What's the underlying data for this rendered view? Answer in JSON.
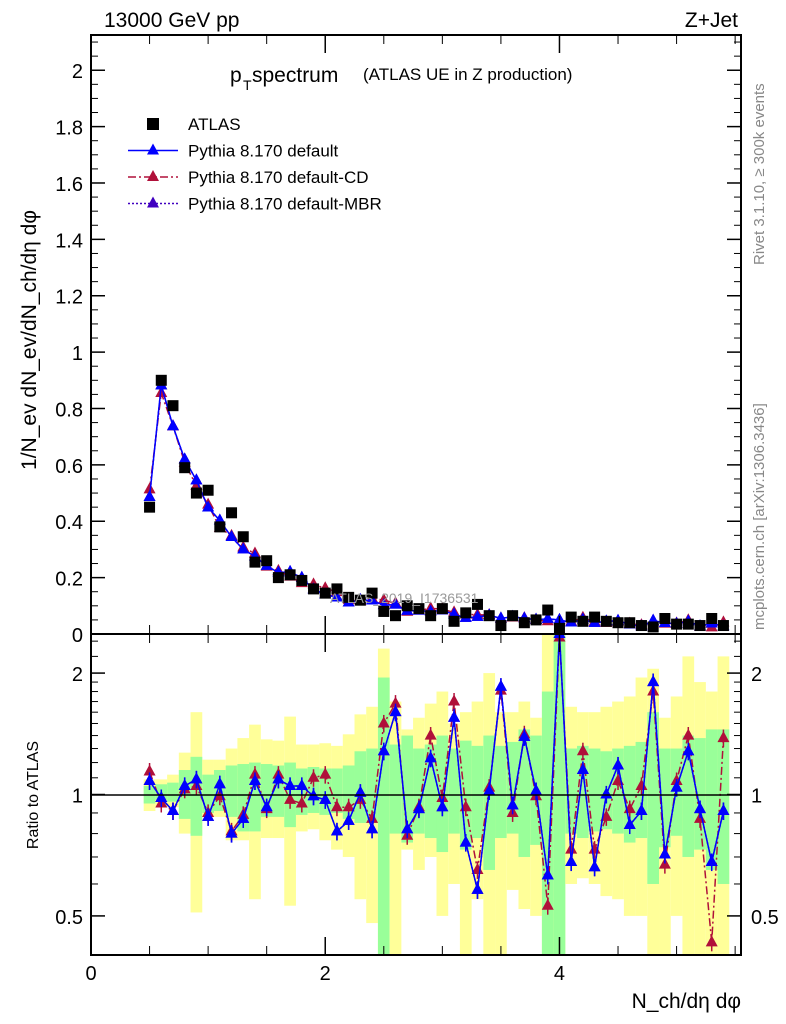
{
  "chart_data": {
    "type": "scatter",
    "header_left": "13000 GeV pp",
    "header_right": "Z+Jet",
    "title_main": "p",
    "title_sub": "T",
    "title_rest": " spectrum",
    "title_paren": "(ATLAS UE in Z production)",
    "ylabel": "1/N_ev dN_ev/dN_ch/dη dφ",
    "xlabel": "N_ch/dη dφ",
    "ratio_ylabel": "Ratio to ATLAS",
    "watermark": "ATLAS_2019_I1736531",
    "side_text_top": "Rivet 3.1.10, ≥ 300k events",
    "side_text_bottom": "mcplots.cern.ch [arXiv:1306.3436]",
    "xlim": [
      0,
      5.55
    ],
    "ylim": [
      0,
      2.125
    ],
    "ratio_ylim": [
      0.4,
      2.5
    ],
    "ratio_scale": "log",
    "x_ticks": [
      "0",
      "2",
      "4"
    ],
    "y_ticks": [
      "0",
      "0.2",
      "0.4",
      "0.6",
      "0.8",
      "1",
      "1.2",
      "1.4",
      "1.6",
      "1.8",
      "2"
    ],
    "ratio_ticks": [
      "0.5",
      "1",
      "2"
    ],
    "legend": [
      {
        "label": "ATLAS",
        "color": "#000000",
        "marker": "square"
      },
      {
        "label": "Pythia 8.170 default",
        "color": "#0000ff",
        "marker": "triangle",
        "line": "solid"
      },
      {
        "label": "Pythia 8.170 default-CD",
        "color": "#b0103a",
        "marker": "triangle",
        "line": "dashdot"
      },
      {
        "label": "Pythia 8.170 default-MBR",
        "color": "#4000c0",
        "marker": "triangle",
        "line": "dotted"
      }
    ],
    "x": [
      0.5,
      0.6,
      0.7,
      0.8,
      0.9,
      1.0,
      1.1,
      1.2,
      1.3,
      1.4,
      1.5,
      1.6,
      1.7,
      1.8,
      1.9,
      2.0,
      2.1,
      2.2,
      2.3,
      2.4,
      2.5,
      2.6,
      2.7,
      2.8,
      2.9,
      3.0,
      3.1,
      3.2,
      3.3,
      3.4,
      3.5,
      3.6,
      3.7,
      3.8,
      3.9,
      4.0,
      4.1,
      4.2,
      4.3,
      4.4,
      4.5,
      4.6,
      4.7,
      4.8,
      4.9,
      5.0,
      5.1,
      5.2,
      5.3,
      5.4
    ],
    "atlas": [
      0.45,
      0.9,
      0.81,
      0.59,
      0.5,
      0.51,
      0.38,
      0.43,
      0.345,
      0.255,
      0.26,
      0.2,
      0.21,
      0.19,
      0.16,
      0.145,
      0.16,
      0.13,
      0.12,
      0.145,
      0.08,
      0.065,
      0.1,
      0.09,
      0.065,
      0.09,
      0.045,
      0.075,
      0.105,
      0.065,
      0.03,
      0.065,
      0.04,
      0.05,
      0.085,
      0.02,
      0.06,
      0.045,
      0.06,
      0.045,
      0.04,
      0.04,
      0.03,
      0.025,
      0.055,
      0.035,
      0.035,
      0.03,
      0.055,
      0.03
    ],
    "ratio_default": [
      1.08,
      0.98,
      0.91,
      1.05,
      1.09,
      0.88,
      1.06,
      0.8,
      0.87,
      1.08,
      0.93,
      1.09,
      1.05,
      1.05,
      0.99,
      0.97,
      0.81,
      0.86,
      1.01,
      0.82,
      1.28,
      1.6,
      0.82,
      0.92,
      1.23,
      0.93,
      1.55,
      0.76,
      0.58,
      1.02,
      1.85,
      0.94,
      1.39,
      1.02,
      0.63,
      2.5,
      0.68,
      1.15,
      0.66,
      1.0,
      1.18,
      0.84,
      0.91,
      1.9,
      0.71,
      1.04,
      1.28,
      0.92,
      0.68,
      0.91
    ],
    "ratio_cd": [
      1.14,
      0.95,
      0.91,
      1.03,
      1.05,
      0.9,
      0.99,
      0.81,
      0.89,
      1.12,
      0.92,
      1.12,
      0.97,
      0.95,
      1.1,
      1.12,
      0.93,
      0.93,
      0.97,
      0.87,
      1.5,
      1.68,
      0.79,
      0.93,
      1.4,
      0.98,
      1.7,
      0.93,
      0.65,
      1.04,
      1.81,
      0.9,
      1.41,
      0.99,
      0.53,
      2.45,
      0.73,
      1.28,
      0.73,
      0.88,
      1.08,
      0.92,
      1.05,
      1.8,
      0.67,
      1.08,
      1.4,
      0.87,
      0.43,
      1.38
    ],
    "ratio_mbr": [
      1.08,
      0.98,
      0.91,
      1.05,
      1.09,
      0.88,
      1.06,
      0.8,
      0.87,
      1.08,
      0.93,
      1.09,
      1.05,
      1.05,
      0.99,
      0.97,
      0.81,
      0.86,
      1.01,
      0.82,
      1.28,
      1.6,
      0.82,
      0.92,
      1.23,
      0.93,
      1.55,
      0.76,
      0.58,
      1.02,
      1.85,
      0.94,
      1.39,
      1.02,
      0.63,
      2.5,
      0.68,
      1.15,
      0.66,
      1.0,
      1.18,
      0.84,
      0.91,
      1.9,
      0.71,
      1.04,
      1.28,
      0.92,
      0.68,
      0.91
    ],
    "band_stat": [
      [
        0.95,
        1.05
      ],
      [
        0.97,
        1.06
      ],
      [
        0.96,
        1.07
      ],
      [
        0.87,
        1.15
      ],
      [
        0.79,
        1.24
      ],
      [
        0.9,
        1.12
      ],
      [
        0.91,
        1.15
      ],
      [
        0.88,
        1.18
      ],
      [
        0.81,
        1.19
      ],
      [
        0.81,
        1.2
      ],
      [
        0.88,
        1.19
      ],
      [
        0.88,
        1.18
      ],
      [
        0.83,
        1.2
      ],
      [
        0.89,
        1.16
      ],
      [
        0.9,
        1.17
      ],
      [
        0.89,
        1.16
      ],
      [
        0.9,
        1.16
      ],
      [
        0.87,
        1.18
      ],
      [
        0.85,
        1.28
      ],
      [
        0.85,
        1.3
      ],
      [
        0.4,
        1.95
      ],
      [
        0.8,
        1.33
      ],
      [
        0.76,
        1.4
      ],
      [
        0.8,
        1.3
      ],
      [
        0.78,
        1.33
      ],
      [
        0.72,
        1.4
      ],
      [
        0.8,
        1.3
      ],
      [
        0.73,
        1.36
      ],
      [
        0.78,
        1.32
      ],
      [
        0.65,
        1.4
      ],
      [
        0.78,
        1.32
      ],
      [
        0.8,
        1.35
      ],
      [
        0.7,
        1.45
      ],
      [
        0.75,
        1.4
      ],
      [
        0.4,
        1.8
      ],
      [
        0.4,
        2.5
      ],
      [
        0.8,
        1.3
      ],
      [
        0.78,
        1.32
      ],
      [
        0.81,
        1.3
      ],
      [
        0.82,
        1.28
      ],
      [
        0.8,
        1.3
      ],
      [
        0.76,
        1.32
      ],
      [
        0.78,
        1.35
      ],
      [
        0.6,
        1.6
      ],
      [
        0.74,
        1.3
      ],
      [
        0.79,
        1.3
      ],
      [
        0.7,
        1.4
      ],
      [
        0.73,
        1.38
      ],
      [
        0.65,
        1.45
      ],
      [
        0.6,
        1.45
      ]
    ],
    "band_total": [
      [
        0.91,
        1.09
      ],
      [
        0.93,
        1.09
      ],
      [
        0.93,
        1.12
      ],
      [
        0.8,
        1.27
      ],
      [
        0.51,
        1.6
      ],
      [
        0.88,
        1.22
      ],
      [
        0.88,
        1.22
      ],
      [
        0.77,
        1.3
      ],
      [
        0.77,
        1.38
      ],
      [
        0.55,
        1.49
      ],
      [
        0.78,
        1.37
      ],
      [
        0.78,
        1.36
      ],
      [
        0.53,
        1.56
      ],
      [
        0.81,
        1.33
      ],
      [
        0.82,
        1.33
      ],
      [
        0.77,
        1.34
      ],
      [
        0.73,
        1.32
      ],
      [
        0.7,
        1.41
      ],
      [
        0.55,
        1.58
      ],
      [
        0.48,
        1.65
      ],
      [
        0.4,
        2.3
      ],
      [
        0.4,
        1.7
      ],
      [
        0.73,
        1.45
      ],
      [
        0.65,
        1.55
      ],
      [
        0.7,
        1.68
      ],
      [
        0.5,
        1.8
      ],
      [
        0.6,
        1.5
      ],
      [
        0.4,
        1.6
      ],
      [
        0.55,
        1.7
      ],
      [
        0.4,
        2.0
      ],
      [
        0.4,
        1.6
      ],
      [
        0.58,
        1.6
      ],
      [
        0.52,
        1.7
      ],
      [
        0.5,
        1.55
      ],
      [
        0.4,
        2.5
      ],
      [
        0.4,
        2.5
      ],
      [
        0.6,
        1.65
      ],
      [
        0.62,
        1.6
      ],
      [
        0.6,
        1.6
      ],
      [
        0.56,
        1.65
      ],
      [
        0.55,
        1.7
      ],
      [
        0.5,
        1.75
      ],
      [
        0.5,
        1.95
      ],
      [
        0.4,
        2.05
      ],
      [
        0.4,
        1.55
      ],
      [
        0.5,
        1.75
      ],
      [
        0.4,
        2.2
      ],
      [
        0.4,
        1.9
      ],
      [
        0.4,
        1.8
      ],
      [
        0.4,
        2.2
      ]
    ]
  }
}
